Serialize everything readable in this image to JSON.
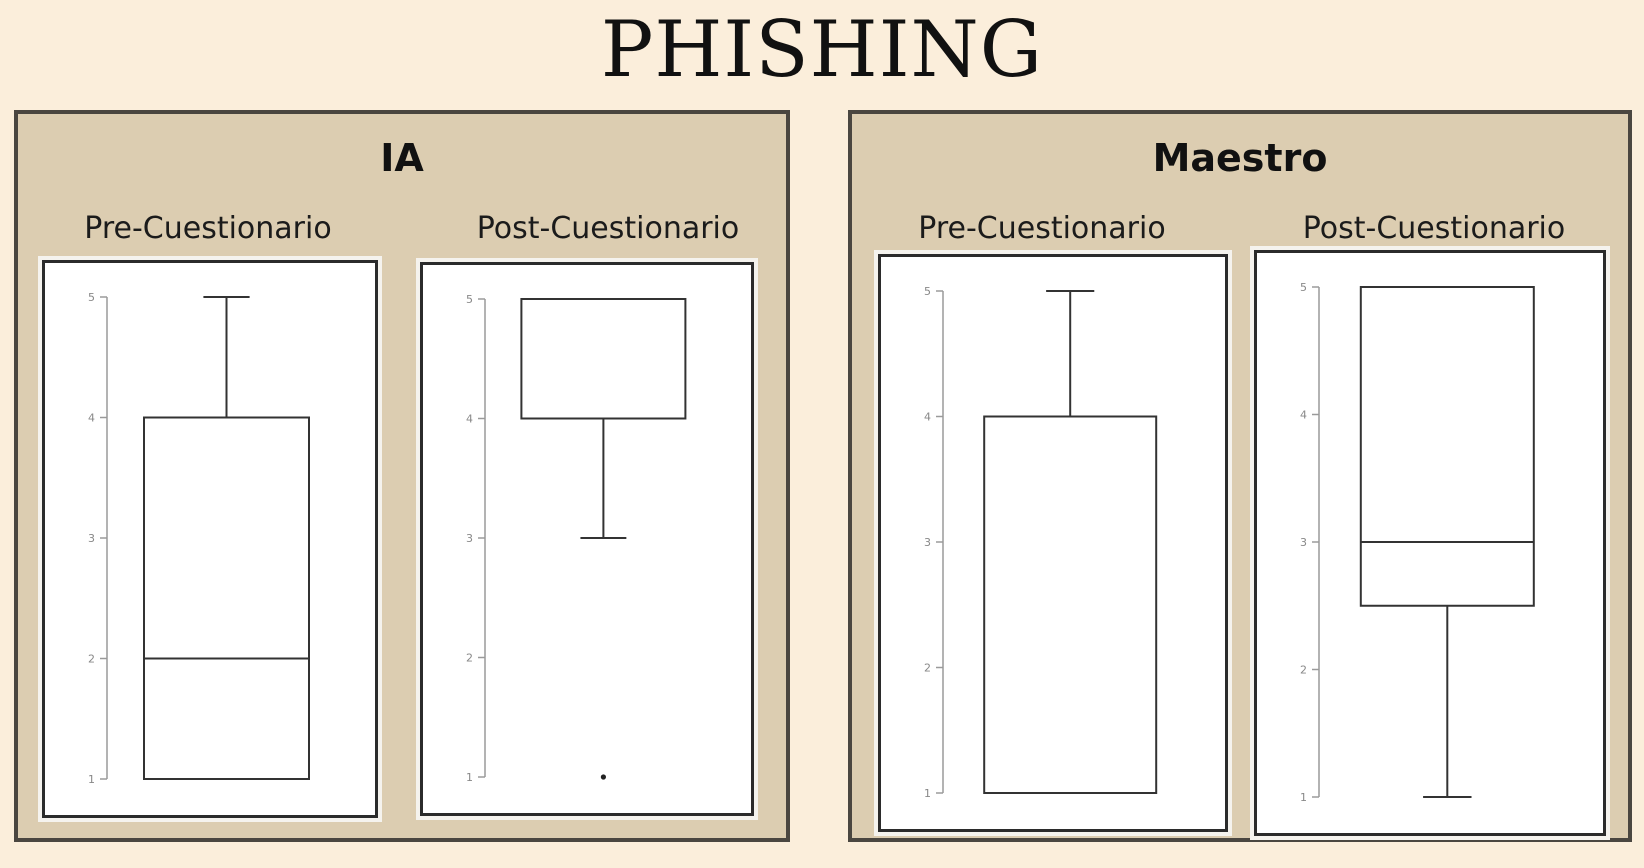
{
  "title": "PHISHING",
  "groups": [
    {
      "name": "IA",
      "pre_label": "Pre-Cuestionario",
      "post_label": "Post-Cuestionario"
    },
    {
      "name": "Maestro",
      "pre_label": "Pre-Cuestionario",
      "post_label": "Post-Cuestionario"
    }
  ],
  "chart_data": [
    {
      "type": "boxplot",
      "group": "IA",
      "xlabel": "Pre-Cuestionario",
      "ylim": [
        1,
        5
      ],
      "yticks": [
        "1",
        "2",
        "3",
        "4",
        "5"
      ],
      "box": {
        "min": 1,
        "q1": 1,
        "median": 2,
        "q3": 4,
        "max": 5,
        "outliers": []
      }
    },
    {
      "type": "boxplot",
      "group": "IA",
      "xlabel": "Post-Cuestionario",
      "ylim": [
        1,
        5
      ],
      "yticks": [
        "1",
        "2",
        "3",
        "4",
        "5"
      ],
      "box": {
        "min": 3,
        "q1": 4,
        "median": 5,
        "q3": 5,
        "max": 5,
        "outliers": [
          1
        ]
      }
    },
    {
      "type": "boxplot",
      "group": "Maestro",
      "xlabel": "Pre-Cuestionario",
      "ylim": [
        1,
        5
      ],
      "yticks": [
        "1",
        "2",
        "3",
        "4",
        "5"
      ],
      "box": {
        "min": 1,
        "q1": 1,
        "median": 1,
        "q3": 4,
        "max": 5,
        "outliers": []
      }
    },
    {
      "type": "boxplot",
      "group": "Maestro",
      "xlabel": "Post-Cuestionario",
      "ylim": [
        1,
        5
      ],
      "yticks": [
        "1",
        "2",
        "3",
        "4",
        "5"
      ],
      "box": {
        "min": 1,
        "q1": 2.5,
        "median": 3,
        "q3": 5,
        "max": 5,
        "outliers": []
      }
    }
  ]
}
